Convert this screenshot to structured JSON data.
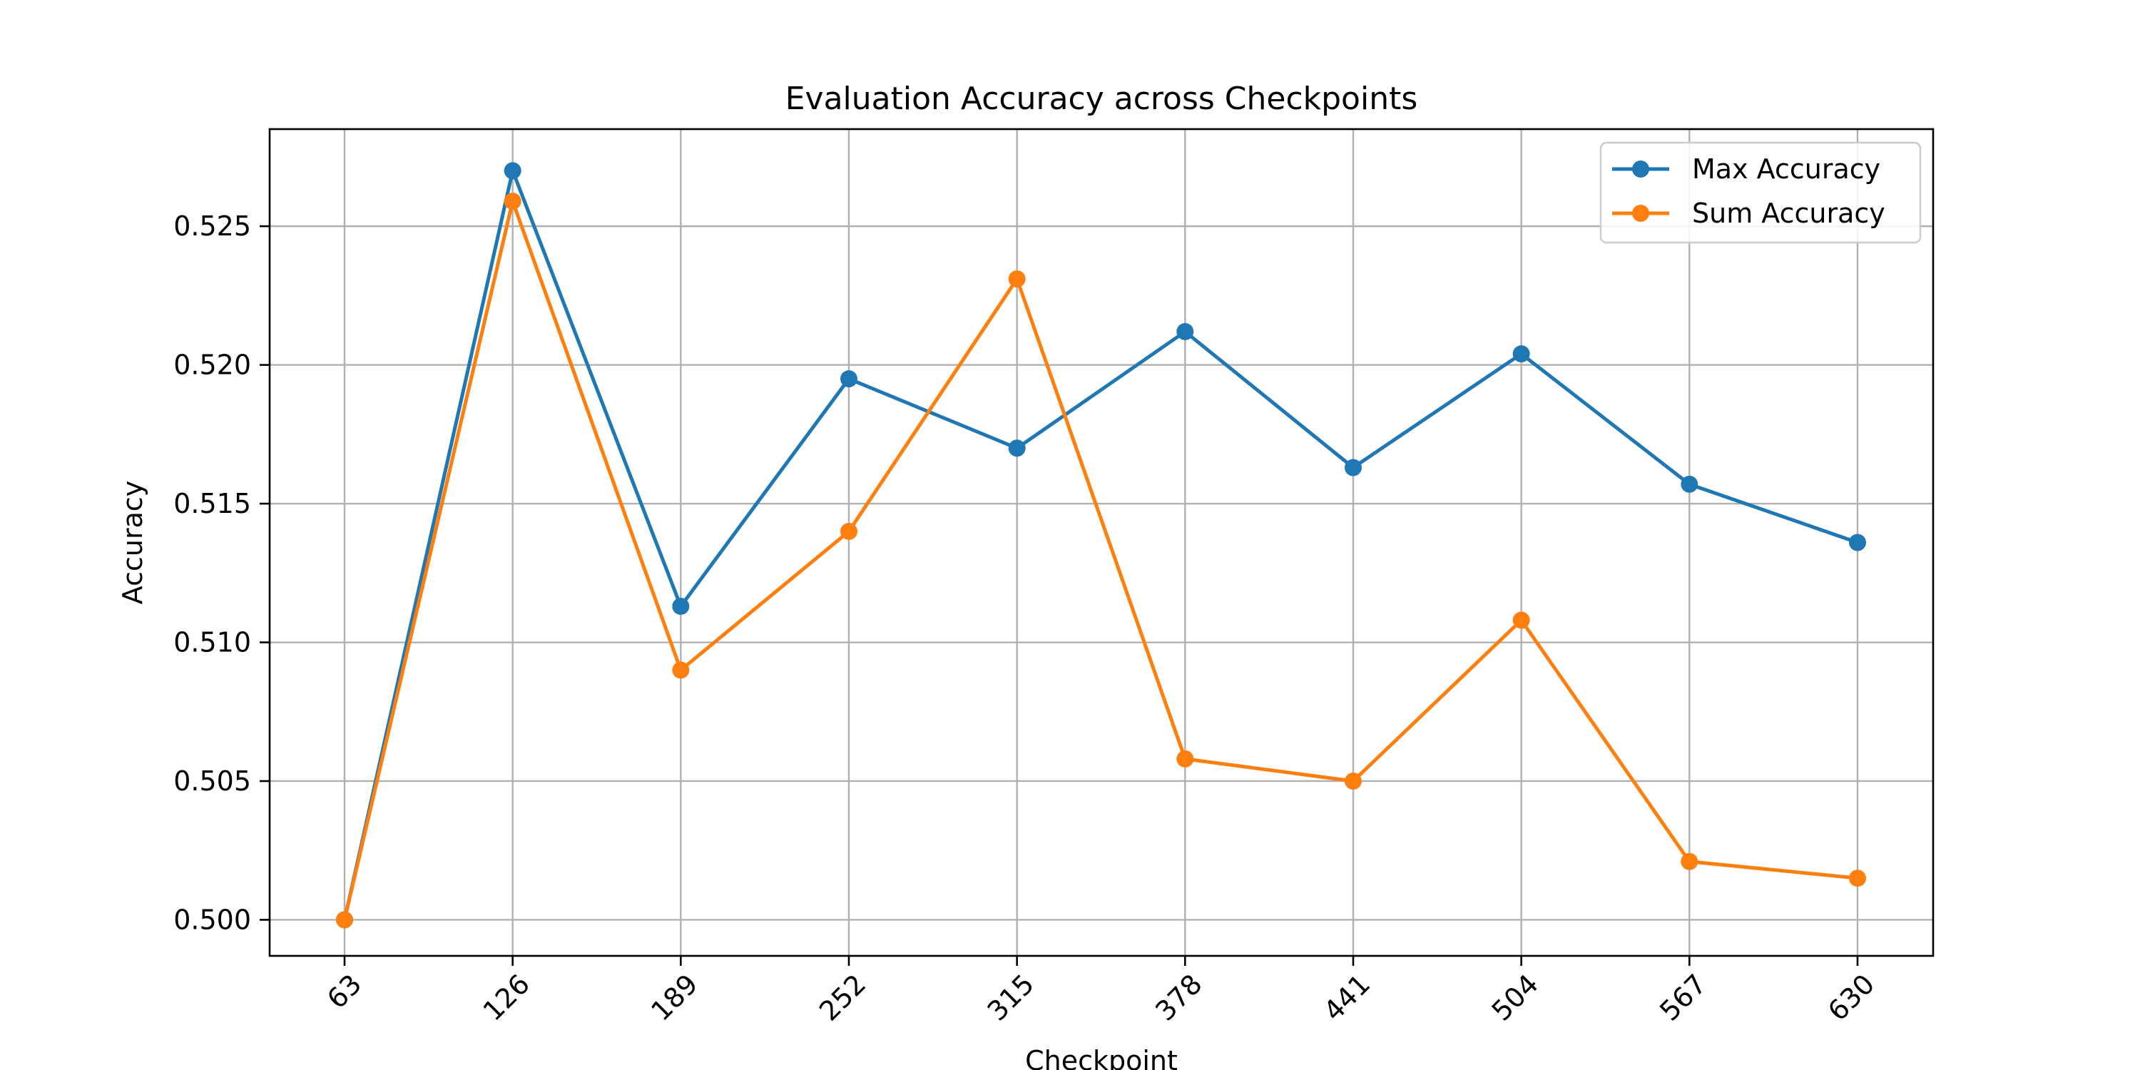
{
  "chart_data": {
    "type": "line",
    "title": "Evaluation Accuracy across Checkpoints",
    "xlabel": "Checkpoint",
    "ylabel": "Accuracy",
    "categories": [
      "63",
      "126",
      "189",
      "252",
      "315",
      "378",
      "441",
      "504",
      "567",
      "630"
    ],
    "ylim": [
      0.4987,
      0.5285
    ],
    "yticks": [
      0.5,
      0.505,
      0.51,
      0.515,
      0.52,
      0.525
    ],
    "ytick_labels": [
      "0.500",
      "0.505",
      "0.510",
      "0.515",
      "0.520",
      "0.525"
    ],
    "grid": true,
    "legend_position": "top-right",
    "series": [
      {
        "name": "Max Accuracy",
        "color": "#1f77b4",
        "marker": "circle",
        "values": [
          0.5,
          0.527,
          0.5113,
          0.5195,
          0.517,
          0.5212,
          0.5163,
          0.5204,
          0.5157,
          0.5136
        ]
      },
      {
        "name": "Sum Accuracy",
        "color": "#ff7f0e",
        "marker": "circle",
        "values": [
          0.5,
          0.5259,
          0.509,
          0.514,
          0.5231,
          0.5058,
          0.505,
          0.5108,
          0.5021,
          0.5015
        ]
      }
    ]
  }
}
